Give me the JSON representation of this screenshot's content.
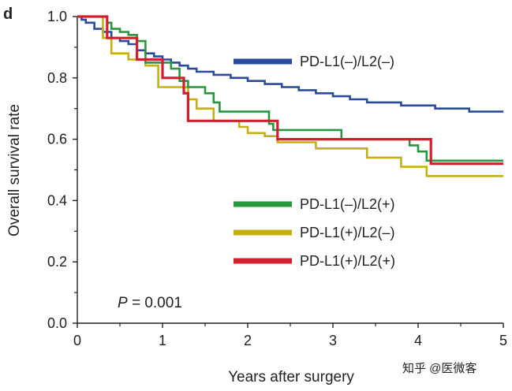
{
  "panel_label": "d",
  "annotation": {
    "p_label": "P",
    "p_rest": " = 0.001",
    "color": "#d0202e"
  },
  "watermark": "知乎 @医微客",
  "chart_data": {
    "type": "line",
    "title": "",
    "xlabel": "Years after surgery",
    "ylabel": "Overall survival rate",
    "xlim": [
      0,
      5
    ],
    "ylim": [
      0,
      1.0
    ],
    "xticks": [
      0,
      1,
      2,
      3,
      4,
      5
    ],
    "xtick_labels": [
      "0",
      "1",
      "2",
      "3",
      "4",
      "5"
    ],
    "yticks": [
      0,
      0.2,
      0.4,
      0.6,
      0.8,
      1.0
    ],
    "ytick_labels": [
      "0.0",
      "0.2",
      "0.4",
      "0.6",
      "0.8",
      "1.0"
    ],
    "grid": false,
    "step": true,
    "legend": [
      "upper-right",
      "lower-right"
    ],
    "series": [
      {
        "name": "PD-L1(–)/L2(–)",
        "color": "#2a4b9b",
        "x": [
          0,
          0.05,
          0.1,
          0.2,
          0.3,
          0.4,
          0.5,
          0.6,
          0.7,
          0.8,
          0.9,
          1.0,
          1.1,
          1.2,
          1.3,
          1.4,
          1.5,
          1.6,
          1.7,
          1.8,
          1.9,
          2.0,
          2.2,
          2.4,
          2.6,
          2.8,
          3.0,
          3.2,
          3.4,
          3.6,
          3.8,
          4.0,
          4.2,
          4.4,
          4.6,
          4.8,
          5.0
        ],
        "y": [
          1.0,
          0.99,
          0.98,
          0.96,
          0.95,
          0.93,
          0.92,
          0.91,
          0.89,
          0.88,
          0.87,
          0.86,
          0.85,
          0.84,
          0.83,
          0.82,
          0.82,
          0.81,
          0.81,
          0.8,
          0.8,
          0.79,
          0.78,
          0.77,
          0.76,
          0.75,
          0.74,
          0.73,
          0.72,
          0.72,
          0.71,
          0.71,
          0.7,
          0.7,
          0.69,
          0.69,
          0.69
        ]
      },
      {
        "name": "PD-L1(–)/L2(+)",
        "color": "#27973e",
        "x": [
          0,
          0.35,
          0.4,
          0.5,
          0.6,
          0.7,
          0.8,
          1.1,
          1.2,
          1.3,
          1.5,
          1.6,
          1.67,
          2.25,
          2.3,
          3.1,
          3.9,
          4.0,
          4.1,
          5.0
        ],
        "y": [
          1.0,
          0.98,
          0.96,
          0.95,
          0.94,
          0.92,
          0.85,
          0.83,
          0.79,
          0.77,
          0.75,
          0.72,
          0.69,
          0.65,
          0.63,
          0.6,
          0.58,
          0.56,
          0.53,
          0.53
        ]
      },
      {
        "name": "PD-L1(+)/L2(–)",
        "color": "#c4b011",
        "x": [
          0,
          0.3,
          0.4,
          0.6,
          0.8,
          0.95,
          1.3,
          1.4,
          1.6,
          1.9,
          2.0,
          2.2,
          2.35,
          2.8,
          3.4,
          3.8,
          4.1,
          5.0
        ],
        "y": [
          1.0,
          0.93,
          0.88,
          0.86,
          0.84,
          0.77,
          0.73,
          0.7,
          0.66,
          0.64,
          0.62,
          0.61,
          0.59,
          0.57,
          0.54,
          0.51,
          0.48,
          0.48
        ]
      },
      {
        "name": "PD-L1(+)/L2(+)",
        "color": "#d0202e",
        "x": [
          0,
          0.35,
          0.7,
          1.0,
          1.25,
          1.3,
          2.35,
          3.95,
          4.15,
          5.0
        ],
        "y": [
          1.0,
          0.93,
          0.86,
          0.8,
          0.75,
          0.66,
          0.6,
          0.6,
          0.52,
          0.52
        ]
      }
    ]
  }
}
